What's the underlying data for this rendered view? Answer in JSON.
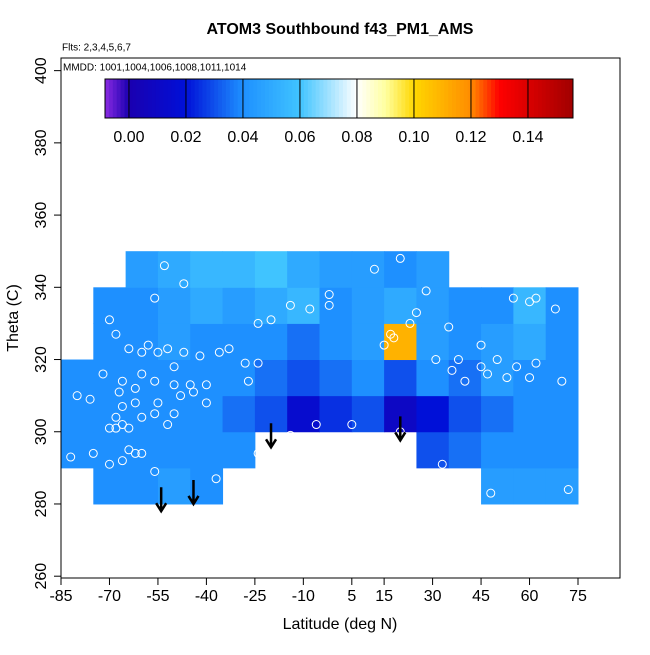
{
  "chart_data": {
    "type": "heatmap",
    "title": "ATOM3 Southbound f43_PM1_AMS",
    "subtitle": "Flts: 2,3,4,5,6,7",
    "annotation": "MMDD: 1001,1004,1006,1008,1011,1014",
    "xlabel": "Latitude (deg N)",
    "ylabel": "Theta (C)",
    "xlim": [
      -85,
      88
    ],
    "ylim": [
      259.5,
      403.5
    ],
    "xticks": [
      -85,
      -70,
      -55,
      -40,
      -25,
      -10,
      5,
      15,
      30,
      45,
      60,
      75
    ],
    "yticks": [
      260,
      280,
      300,
      320,
      340,
      360,
      380,
      400
    ],
    "x": [
      -80,
      -70,
      -60,
      -50,
      -40,
      -30,
      -20,
      -10,
      0,
      10,
      20,
      30,
      40,
      50,
      60,
      70
    ],
    "y": [
      285,
      295,
      305,
      315,
      325,
      335,
      345
    ],
    "z": [
      [
        null,
        0.04,
        0.04,
        0.045,
        0.04,
        null,
        null,
        null,
        null,
        null,
        null,
        null,
        null,
        0.045,
        0.045,
        0.045
      ],
      [
        0.04,
        0.04,
        0.04,
        0.04,
        0.04,
        0.04,
        null,
        null,
        null,
        null,
        null,
        0.03,
        0.035,
        0.04,
        0.04,
        0.04
      ],
      [
        0.04,
        0.04,
        0.04,
        0.04,
        0.04,
        0.035,
        0.03,
        0.015,
        0.025,
        0.03,
        0.01,
        0.02,
        0.03,
        0.035,
        0.04,
        0.04
      ],
      [
        0.04,
        0.04,
        0.04,
        0.04,
        0.04,
        0.04,
        0.035,
        0.03,
        0.035,
        0.04,
        0.03,
        0.04,
        0.035,
        0.045,
        0.04,
        0.04
      ],
      [
        null,
        0.04,
        0.04,
        0.045,
        0.04,
        0.04,
        0.04,
        0.035,
        0.04,
        0.045,
        0.11,
        0.045,
        0.04,
        0.045,
        0.05,
        0.04
      ],
      [
        null,
        0.04,
        0.04,
        0.045,
        0.05,
        0.045,
        0.05,
        0.055,
        0.04,
        0.045,
        0.05,
        0.045,
        0.04,
        0.04,
        0.055,
        0.04
      ],
      [
        null,
        null,
        0.045,
        0.05,
        0.055,
        0.055,
        0.06,
        0.05,
        0.045,
        0.045,
        0.04,
        0.045,
        null,
        null,
        null,
        null
      ]
    ],
    "colorbar_lim": [
      -0.0084,
      0.1558
    ],
    "colorbar_ticks": [
      {
        "value": 0,
        "label": "0.00"
      },
      0.02,
      0.04,
      0.06,
      0.08,
      {
        "value": 0.1,
        "label": "0.10"
      },
      0.12,
      0.14
    ],
    "colorscale": [
      [
        -0.0084,
        "#8a2be2"
      ],
      [
        0.0,
        "#1a00b0"
      ],
      [
        0.02,
        "#0010d8"
      ],
      [
        0.04,
        "#1e90ff"
      ],
      [
        0.06,
        "#40c4ff"
      ],
      [
        0.08,
        "#ffffff"
      ],
      [
        0.09,
        "#ffffa0"
      ],
      [
        0.1,
        "#ffd700"
      ],
      [
        0.12,
        "#ff8c00"
      ],
      [
        0.13,
        "#ff0000"
      ],
      [
        0.1558,
        "#a00000"
      ]
    ],
    "points": {
      "color": "#ffffff",
      "x": [
        -53,
        -56,
        -70,
        -68,
        -64,
        -58,
        -60,
        -52,
        -55,
        -47,
        -42,
        -36,
        -33,
        -50,
        -60,
        -66,
        -72,
        -76,
        -80,
        -67,
        -62,
        -56,
        -50,
        -45,
        -48,
        -40,
        -55,
        -62,
        -66,
        -68,
        -70,
        -68,
        -66,
        -64,
        -60,
        -56,
        -52,
        -40,
        -44,
        -82,
        -75,
        -70,
        -66,
        -64,
        -62,
        -60,
        -56,
        -50,
        -37,
        -27,
        -28,
        -24,
        -20,
        -24,
        -14,
        -8,
        -2,
        -24,
        -14,
        -6,
        5,
        12,
        20,
        28,
        23,
        25,
        18,
        15,
        17,
        20,
        35,
        45,
        45,
        36,
        31,
        38,
        40,
        47,
        50,
        56,
        53,
        60,
        62,
        70,
        55,
        62,
        60,
        68,
        33,
        41,
        48,
        72,
        -47,
        -2
      ],
      "y": [
        346,
        337,
        331,
        327,
        323,
        324,
        322,
        323,
        322,
        322,
        321,
        322,
        323,
        318,
        316,
        314,
        316,
        309,
        310,
        311,
        312,
        314,
        313,
        313,
        310,
        313,
        308,
        308,
        307,
        304,
        301,
        301,
        302,
        301,
        304,
        305,
        302,
        308,
        311,
        293,
        294,
        291,
        292,
        295,
        294,
        294,
        289,
        305,
        287,
        314,
        319,
        319,
        331,
        330,
        335,
        334,
        335,
        294,
        299,
        302,
        302,
        345,
        348,
        339,
        330,
        333,
        326,
        324,
        327,
        300,
        329,
        324,
        318,
        317,
        320,
        320,
        314,
        316,
        320,
        318,
        315,
        315,
        319,
        314,
        337,
        337,
        336,
        334,
        291,
        286,
        283,
        284,
        341,
        338
      ]
    },
    "arrows": {
      "x": [
        -54,
        -44,
        -20,
        20
      ],
      "y": [
        278,
        280,
        295.7,
        297.6
      ]
    }
  }
}
